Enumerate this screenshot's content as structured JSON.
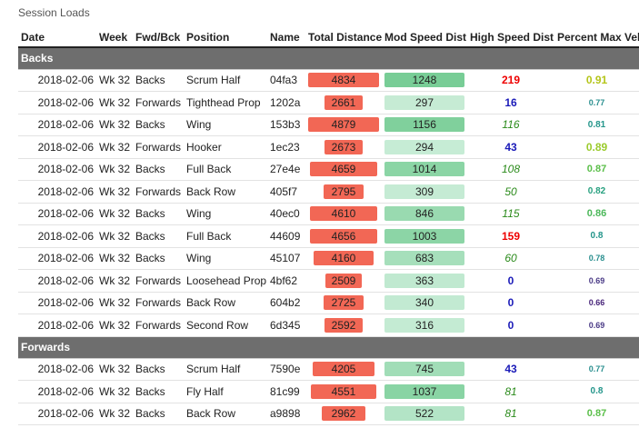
{
  "caption": "Session Loads",
  "columns": [
    "Date",
    "Week",
    "Fwd/Bck",
    "Position",
    "Name",
    "Total Distance",
    "Mod Speed Dist",
    "High Speed Dist",
    "Percent Max Vel"
  ],
  "colors": {
    "dist_bar": "#f26755",
    "hsd_red": "#e00000",
    "hsd_blue": "#1a1ab8",
    "hsd_green": "#2a8a1a",
    "group_header": "#6e6e6e"
  },
  "groups": [
    {
      "label": "Backs",
      "rows": [
        {
          "date": "2018-02-06",
          "week": "Wk 32",
          "fwd_bck": "Backs",
          "position": "Scrum Half",
          "name": "04fa3",
          "total_distance": "4834",
          "mod_speed_dist": "1248",
          "high_speed_dist": "219",
          "hsd_style": "red",
          "pmv": "0.91",
          "pmv_color": "#b5c51b",
          "pmv_size": 12
        },
        {
          "date": "2018-02-06",
          "week": "Wk 32",
          "fwd_bck": "Forwards",
          "position": "Tighthead Prop",
          "name": "1202a",
          "total_distance": "2661",
          "mod_speed_dist": "297",
          "high_speed_dist": "16",
          "hsd_style": "blue",
          "pmv": "0.77",
          "pmv_color": "#2a8f8f",
          "pmv_size": 9
        },
        {
          "date": "2018-02-06",
          "week": "Wk 32",
          "fwd_bck": "Backs",
          "position": "Wing",
          "name": "153b3",
          "total_distance": "4879",
          "mod_speed_dist": "1156",
          "high_speed_dist": "116",
          "hsd_style": "green",
          "pmv": "0.81",
          "pmv_color": "#23958a",
          "pmv_size": 10
        },
        {
          "date": "2018-02-06",
          "week": "Wk 32",
          "fwd_bck": "Forwards",
          "position": "Hooker",
          "name": "1ec23",
          "total_distance": "2673",
          "mod_speed_dist": "294",
          "high_speed_dist": "43",
          "hsd_style": "blue",
          "pmv": "0.89",
          "pmv_color": "#9bcb2d",
          "pmv_size": 12
        },
        {
          "date": "2018-02-06",
          "week": "Wk 32",
          "fwd_bck": "Backs",
          "position": "Full Back",
          "name": "27e4e",
          "total_distance": "4659",
          "mod_speed_dist": "1014",
          "high_speed_dist": "108",
          "hsd_style": "green",
          "pmv": "0.87",
          "pmv_color": "#5bbf4a",
          "pmv_size": 11
        },
        {
          "date": "2018-02-06",
          "week": "Wk 32",
          "fwd_bck": "Forwards",
          "position": "Back Row",
          "name": "405f7",
          "total_distance": "2795",
          "mod_speed_dist": "309",
          "high_speed_dist": "50",
          "hsd_style": "green",
          "pmv": "0.82",
          "pmv_color": "#27a07f",
          "pmv_size": 10
        },
        {
          "date": "2018-02-06",
          "week": "Wk 32",
          "fwd_bck": "Backs",
          "position": "Wing",
          "name": "40ec0",
          "total_distance": "4610",
          "mod_speed_dist": "846",
          "high_speed_dist": "115",
          "hsd_style": "green",
          "pmv": "0.86",
          "pmv_color": "#4cb85a",
          "pmv_size": 11
        },
        {
          "date": "2018-02-06",
          "week": "Wk 32",
          "fwd_bck": "Backs",
          "position": "Full Back",
          "name": "44609",
          "total_distance": "4656",
          "mod_speed_dist": "1003",
          "high_speed_dist": "159",
          "hsd_style": "red",
          "pmv": "0.8",
          "pmv_color": "#23958a",
          "pmv_size": 10
        },
        {
          "date": "2018-02-06",
          "week": "Wk 32",
          "fwd_bck": "Backs",
          "position": "Wing",
          "name": "45107",
          "total_distance": "4160",
          "mod_speed_dist": "683",
          "high_speed_dist": "60",
          "hsd_style": "green",
          "pmv": "0.78",
          "pmv_color": "#2a8f8f",
          "pmv_size": 9
        },
        {
          "date": "2018-02-06",
          "week": "Wk 32",
          "fwd_bck": "Forwards",
          "position": "Loosehead Prop",
          "name": "4bf62",
          "total_distance": "2509",
          "mod_speed_dist": "363",
          "high_speed_dist": "0",
          "hsd_style": "blue",
          "pmv": "0.69",
          "pmv_color": "#4a3a86",
          "pmv_size": 9
        },
        {
          "date": "2018-02-06",
          "week": "Wk 32",
          "fwd_bck": "Forwards",
          "position": "Back Row",
          "name": "604b2",
          "total_distance": "2725",
          "mod_speed_dist": "340",
          "high_speed_dist": "0",
          "hsd_style": "blue",
          "pmv": "0.66",
          "pmv_color": "#48257a",
          "pmv_size": 9
        },
        {
          "date": "2018-02-06",
          "week": "Wk 32",
          "fwd_bck": "Forwards",
          "position": "Second Row",
          "name": "6d345",
          "total_distance": "2592",
          "mod_speed_dist": "316",
          "high_speed_dist": "0",
          "hsd_style": "blue",
          "pmv": "0.69",
          "pmv_color": "#4a3a86",
          "pmv_size": 9
        }
      ]
    },
    {
      "label": "Forwards",
      "rows": [
        {
          "date": "2018-02-06",
          "week": "Wk 32",
          "fwd_bck": "Backs",
          "position": "Scrum Half",
          "name": "7590e",
          "total_distance": "4205",
          "mod_speed_dist": "745",
          "high_speed_dist": "43",
          "hsd_style": "blue",
          "pmv": "0.77",
          "pmv_color": "#2a8f8f",
          "pmv_size": 9
        },
        {
          "date": "2018-02-06",
          "week": "Wk 32",
          "fwd_bck": "Backs",
          "position": "Fly Half",
          "name": "81c99",
          "total_distance": "4551",
          "mod_speed_dist": "1037",
          "high_speed_dist": "81",
          "hsd_style": "green",
          "pmv": "0.8",
          "pmv_color": "#23958a",
          "pmv_size": 10
        },
        {
          "date": "2018-02-06",
          "week": "Wk 32",
          "fwd_bck": "Backs",
          "position": "Back Row",
          "name": "a9898",
          "total_distance": "2962",
          "mod_speed_dist": "522",
          "high_speed_dist": "81",
          "hsd_style": "green",
          "pmv": "0.87",
          "pmv_color": "#5bbf4a",
          "pmv_size": 11
        }
      ]
    }
  ]
}
